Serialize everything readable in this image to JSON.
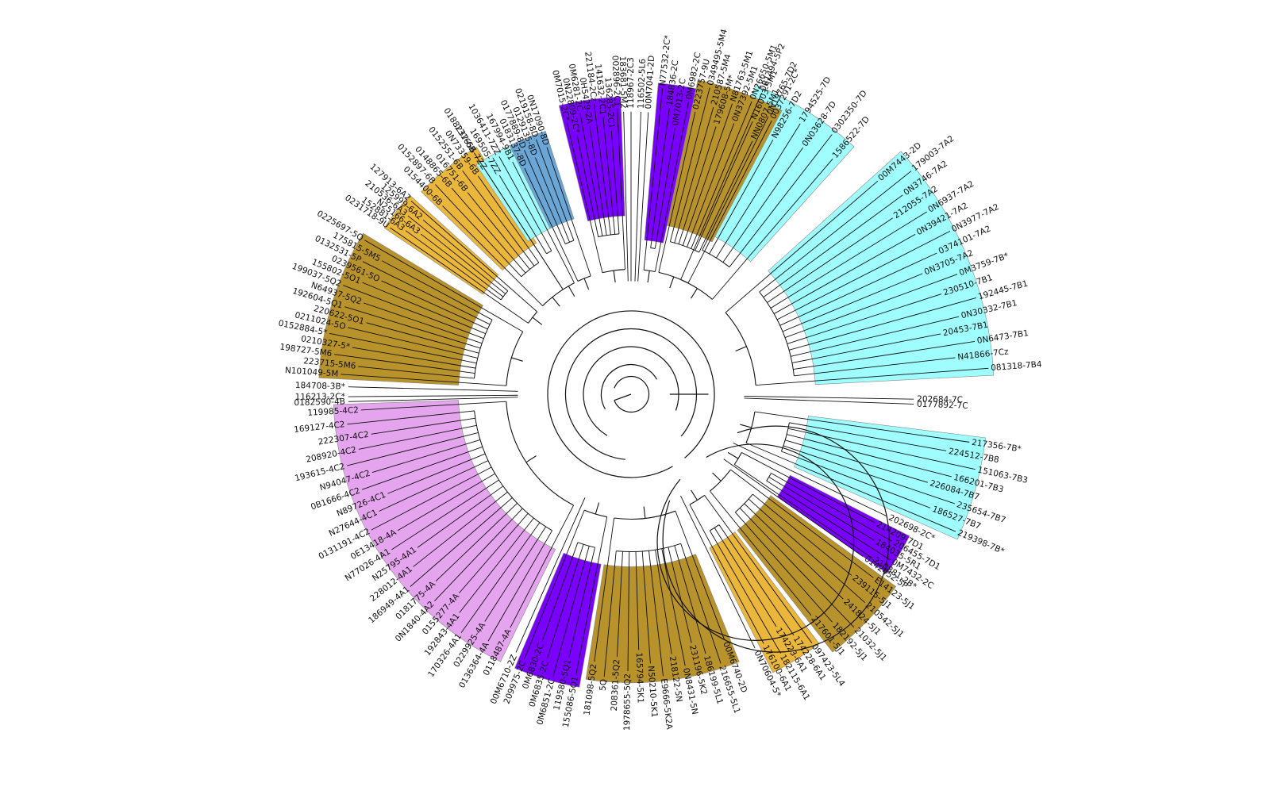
{
  "colors": {
    "purple": "#7a00ff",
    "brown": "#b8922a",
    "gold": "#eab73a",
    "cyan": "#9ffdfd",
    "steel_blue": "#6aa6d6",
    "pink": "#e5a4ee",
    "branch": "#111111",
    "background": "#ffffff"
  },
  "clades": [
    {
      "name": "cyan-upper-right",
      "color": "cyan",
      "a0": 292,
      "a1": 312,
      "r0": 0.6,
      "r1": 1.12,
      "labels": [
        "0B1494-5P2",
        "0N19765-7D2",
        "N98256-7D2",
        "1794525-7D",
        "0N03628-7D",
        "0302350-7D",
        "1586522-7D"
      ]
    },
    {
      "name": "cyan-right-a",
      "color": "cyan",
      "a0": 318,
      "a1": 357,
      "r0": 0.62,
      "r1": 1.22,
      "labels": [
        "00M7443-2D",
        "179003-7A2",
        "0N3746-7A2",
        "212055-7A2",
        "0N6937-7A2",
        "0N39421-7A2",
        "0N3977-7A2",
        "0374101-7A2",
        "0N3705-7A2",
        "0M3759-7B*",
        "230510-7B1",
        "192445-7B1",
        "0N30332-7B1",
        "20453-7B1",
        "0N6473-7B1",
        "N41866-7Cz",
        "081318-7B4"
      ]
    },
    {
      "name": "cyan-right-b",
      "color": "cyan",
      "a0": 7,
      "a1": 24,
      "r0": 0.6,
      "r1": 1.2,
      "labels": [
        "217356-7B*",
        "224512-7B8",
        "151063-7B3",
        "166201-7B3",
        "226084-7B7",
        "235654-7B7",
        "186527-7B7",
        "219398-7B*"
      ]
    },
    {
      "name": "purple-right",
      "color": "purple",
      "a0": 27,
      "a1": 35,
      "r0": 0.6,
      "r1": 1.05,
      "labels": [
        "214209-7D1",
        "206455-7D1",
        "184035-5R1",
        "0M7432-2C",
        "210881-2B*"
      ]
    },
    {
      "name": "brown-lower-right",
      "color": "brown",
      "a0": 36,
      "a1": 52,
      "r0": 0.58,
      "r1": 1.1,
      "labels": [
        "E14123-5J1",
        "239115-5J1",
        "210542-5J1",
        "241824-5J1",
        "21032-5J1",
        "182192-5J1",
        "217601-5J1"
      ]
    },
    {
      "name": "gold-lower-right",
      "color": "gold",
      "a0": 53,
      "a1": 63,
      "r0": 0.58,
      "r1": 1.05,
      "labels": [
        "097423-5L4",
        "174228-6A1",
        "174223-6A1",
        "182115-6A1",
        "176100-6A1"
      ]
    },
    {
      "name": "brown-bottom",
      "color": "brown",
      "a0": 68,
      "a1": 99,
      "r0": 0.58,
      "r1": 0.97,
      "labels": [
        "00M6740-2D",
        "216655-5L1",
        "186199-5L1",
        "231196-5K2",
        "0N8431-5N",
        "218122-5N",
        "E9666-5K2A",
        "N50210-5K1",
        "165794-5K1",
        "1978655-5Q2",
        "208361-5Q2",
        "5Q",
        "181098-5Q2"
      ]
    },
    {
      "name": "purple-bottom",
      "color": "purple",
      "a0": 100,
      "a1": 113,
      "r0": 0.58,
      "r1": 1.0,
      "labels": [
        "155086-5Q1",
        "119580-5Q1",
        "0M6851-2C",
        "0M6835-2C",
        "0M6830-2C",
        "209975-2C"
      ]
    },
    {
      "name": "pink-lower-left",
      "color": "pink",
      "a0": 116,
      "a1": 178,
      "r0": 0.58,
      "r1": 1.0,
      "labels": [
        "0118487-4A",
        "0136364-4A",
        "0229925-4A",
        "170326-4A1",
        "192843-4A1",
        "0155277-4A",
        "0N1840-4A2",
        "0181775-4A",
        "186949-4A1",
        "228012-4A1",
        "N25795-4A1",
        "N77026-4A1",
        "0E13418-4A",
        "0131191-4C2",
        "N27644-4C1",
        "N89726-4C1",
        "0B1666-4C2",
        "N94047-4C2",
        "193615-4C2",
        "208920-4C2",
        "222307-4C2",
        "169127-4C2",
        "119985-4C2"
      ]
    },
    {
      "name": "brown-left",
      "color": "brown",
      "a0": 183,
      "a1": 211,
      "r0": 0.58,
      "r1": 1.05,
      "labels": [
        "N101049-5M",
        "223715-5M6",
        "198727-5M6",
        "0210327-5*",
        "0152884-5*",
        "0211024-5O",
        "220622-5O1",
        "192604-5Q1",
        "N64937-5Q2",
        "199037-5Q2",
        "155802-5O1",
        "0239561-5O",
        "0132531-5P",
        "175815-5M5",
        "0225697-5Q"
      ]
    },
    {
      "name": "gold-left-a",
      "color": "gold",
      "a0": 214,
      "a1": 222,
      "r0": 0.6,
      "r1": 1.0,
      "labels": [
        "0231718-9U",
        "152881-6A3",
        "N25166-6A3",
        "210536-6A3",
        "125999-6A2",
        "127913-6A2"
      ]
    },
    {
      "name": "gold-left-b",
      "color": "gold",
      "a0": 224,
      "a1": 238,
      "r0": 0.6,
      "r1": 0.98,
      "labels": [
        "0154400-6B",
        "0152897-6B",
        "0148865-6B",
        "016751-6B",
        "0152551-6B",
        "0N73359-6B",
        "0188237-6B"
      ]
    },
    {
      "name": "cyan-upper-left",
      "color": "cyan",
      "a0": 236,
      "a1": 244,
      "r0": 0.62,
      "r1": 0.93,
      "labels": [
        "131656-7ZZ",
        "169505-7ZZ",
        "1036411-7ZZ",
        "167994-9B1"
      ]
    },
    {
      "name": "steelblue-upper-left",
      "color": "steel_blue",
      "a0": 244,
      "a1": 252,
      "r0": 0.62,
      "r1": 0.93,
      "labels": [
        "0183137-8D",
        "0177889-8D",
        "0129135-8D",
        "0219158-8D",
        "0N17090-8D"
      ]
    },
    {
      "name": "purple-top-a",
      "color": "purple",
      "a0": 256,
      "a1": 268,
      "r0": 0.6,
      "r1": 1.0,
      "labels": [
        "0M7015-2C*",
        "0N22809-2C*",
        "0M6281-2C",
        "0H5429-2A",
        "221184-2Cz",
        "141632-2C1",
        "136285-2C1",
        "002896-2C1"
      ]
    },
    {
      "name": "purple-top-b",
      "color": "purple",
      "a0": 275,
      "a1": 282,
      "r0": 0.52,
      "r1": 1.05,
      "labels": [
        "N77532-2C*",
        "184836-2C",
        "0M7013-2C",
        "0M6982-2C"
      ]
    },
    {
      "name": "brown-top",
      "color": "brown",
      "a0": 282,
      "a1": 298,
      "r0": 0.58,
      "r1": 1.08,
      "labels": [
        "0223757-9U",
        "0349495-5M4",
        "210587-5M4",
        "179608-5M*",
        "N81763-5M1",
        "0N37392-5M1",
        "0N26650-5M1",
        "N16003-5M1",
        "NN0807-5M1",
        "0037291-2C*"
      ]
    }
  ],
  "free_labels": [
    {
      "text": "116502-5L6",
      "angle": 272
    },
    {
      "text": "118967-2C3",
      "angle": 270
    },
    {
      "text": "183681-5M2",
      "angle": 268.5
    },
    {
      "text": "00M7041-2D",
      "angle": 273.5
    },
    {
      "text": "116213-2C*",
      "angle": 179.5
    },
    {
      "text": "0182590-4B",
      "angle": 178.5
    },
    {
      "text": "184708-3B*",
      "angle": 181.5
    },
    {
      "text": "202698-2C*",
      "angle": 25.5
    },
    {
      "text": "0142452-5P",
      "angle": 35
    },
    {
      "text": "0N70604-5*",
      "angle": 64
    },
    {
      "text": "00M6710-2Z",
      "angle": 114
    },
    {
      "text": "202684-7C",
      "angle": 1
    },
    {
      "text": "0177892-7C",
      "angle": 2
    }
  ]
}
